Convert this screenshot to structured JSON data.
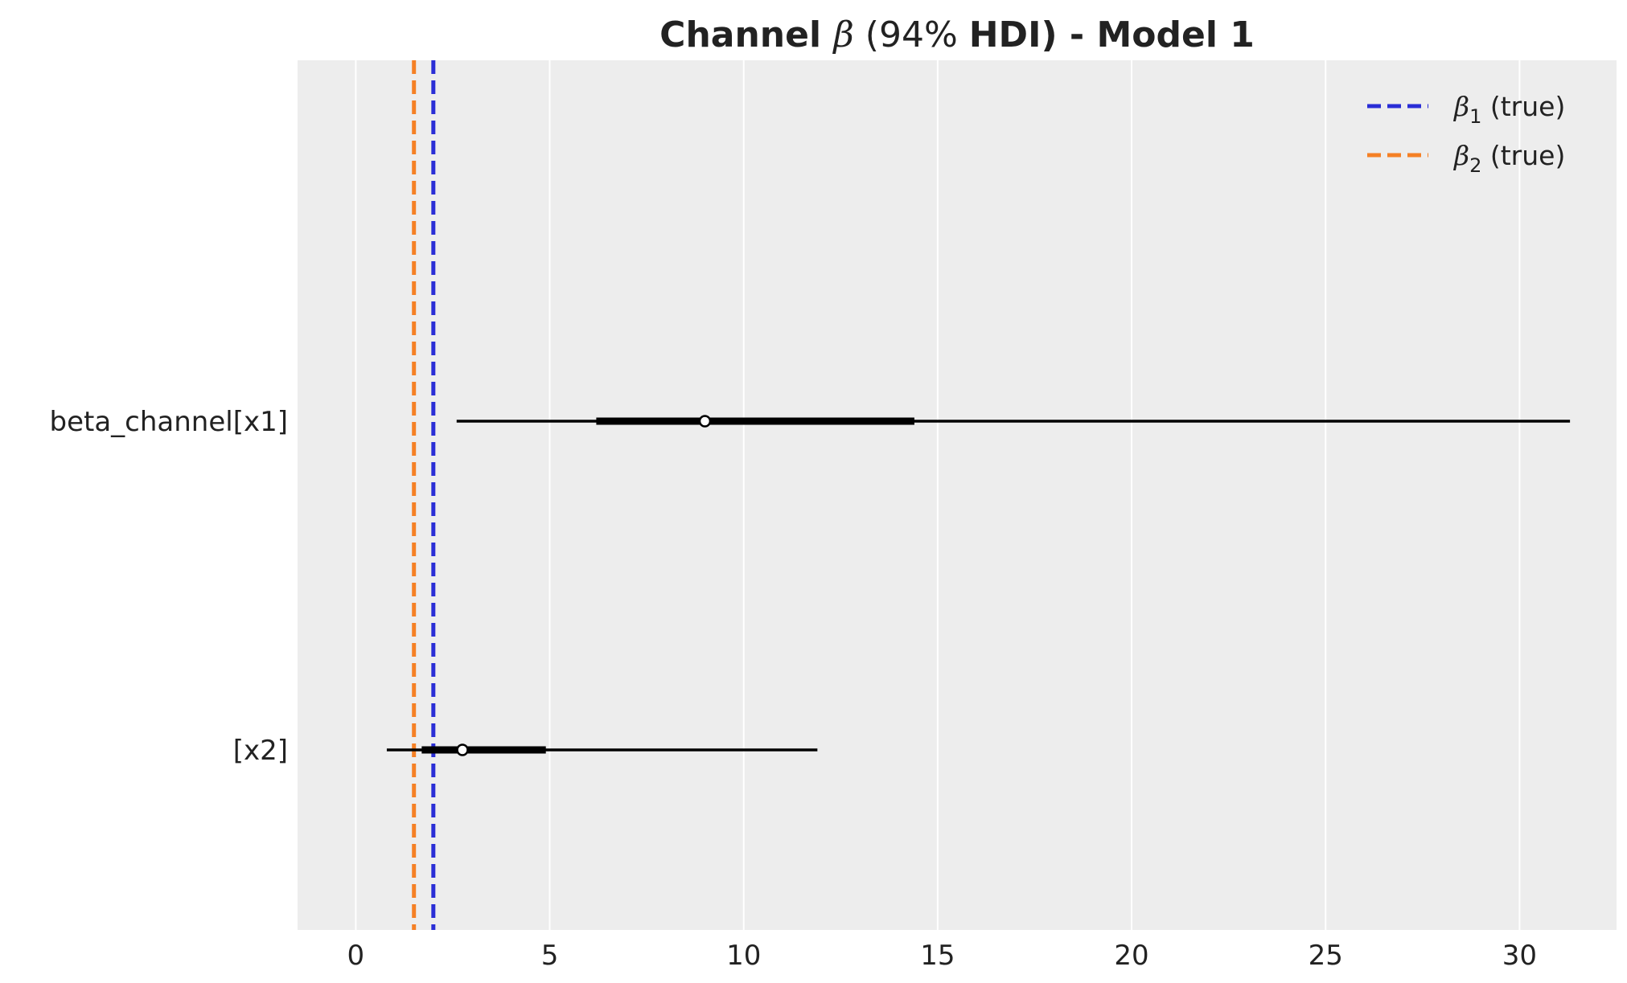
{
  "chart_data": {
    "type": "forest",
    "title_parts": {
      "prefix": "Channel ",
      "symbol": "β",
      "middle": " (94% ",
      "suffix": "HDI) - Model 1"
    },
    "xlim": [
      -1.5,
      32.5
    ],
    "xticks": [
      0,
      5,
      10,
      15,
      20,
      25,
      30
    ],
    "xtick_labels": [
      "0",
      "5",
      "10",
      "15",
      "20",
      "25",
      "30"
    ],
    "grid": true,
    "legend_position": "top-right",
    "rows": [
      {
        "label": "beta_channel[x1]",
        "hdi_low": 2.6,
        "hdi_high": 31.3,
        "iqr_low": 6.2,
        "iqr_high": 14.4,
        "median": 9.0
      },
      {
        "label": "[x2]",
        "hdi_low": 0.8,
        "hdi_high": 11.9,
        "iqr_low": 1.7,
        "iqr_high": 4.9,
        "median": 2.75
      }
    ],
    "reference_lines": [
      {
        "symbol": "β",
        "subscript": "1",
        "suffix": " (true)",
        "x": 2.0,
        "color": "#2a2ed6"
      },
      {
        "symbol": "β",
        "subscript": "2",
        "suffix": " (true)",
        "x": 1.5,
        "color": "#f58025"
      }
    ],
    "colors": {
      "plot_background": "#ededed",
      "grid": "#ffffff",
      "interval": "#000000"
    }
  }
}
